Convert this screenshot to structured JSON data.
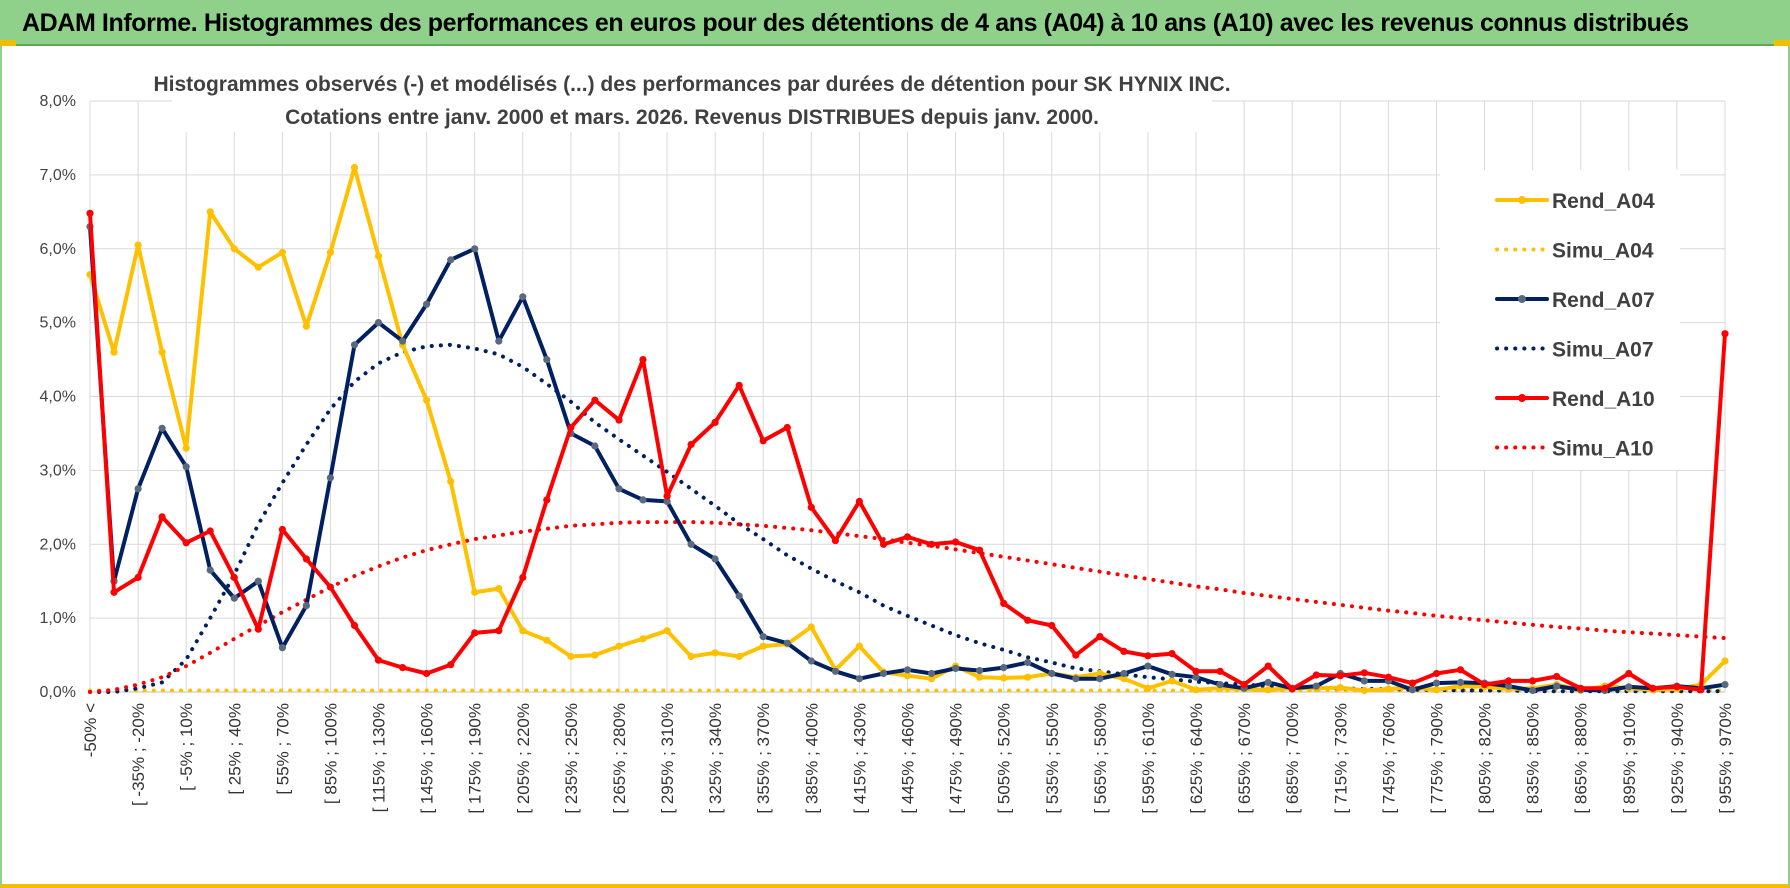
{
  "header": {
    "title": "ADAM Informe. Histogrammes des performances en euros pour des détentions de 4 ans (A04) à 10 ans (A10) avec les revenus connus distribués"
  },
  "chart_data": {
    "type": "line",
    "title": "Histogrammes observés (-) et modélisés (...) des performances par durées de détention pour SK HYNIX INC.",
    "subtitle": "Cotations entre janv. 2000 et mars. 2026.  Revenus DISTRIBUES depuis janv. 2000.",
    "ylim": [
      0,
      8
    ],
    "yticks": [
      "0,0%",
      "1,0%",
      "2,0%",
      "3,0%",
      "4,0%",
      "5,0%",
      "6,0%",
      "7,0%",
      "8,0%"
    ],
    "x_tick_labels": [
      "-50% <",
      "[ -35% ; -20%",
      "[ -5% ; 10%",
      "[ 25% ; 40%",
      "[ 55% ; 70%",
      "[ 85% ; 100%",
      "[ 115% ; 130%",
      "[ 145% ; 160%",
      "[ 175% ; 190%",
      "[ 205% ; 220%",
      "[ 235% ; 250%",
      "[ 265% ; 280%",
      "[ 295% ; 310%",
      "[ 325% ; 340%",
      "[ 355% ; 370%",
      "[ 385% ; 400%",
      "[ 415% ; 430%",
      "[ 445% ; 460%",
      "[ 475% ; 490%",
      "[ 505% ; 520%",
      "[ 535% ; 550%",
      "[ 565% ; 580%",
      "[ 595% ; 610%",
      "[ 625% ; 640%",
      "[ 655% ; 670%",
      "[ 685% ; 700%",
      "[ 715% ; 730%",
      "[ 745% ; 760%",
      "[ 775% ; 790%",
      "[ 805% ; 820%",
      "[ 835% ; 850%",
      "[ 865% ; 880%",
      "[ 895% ; 910%",
      "[ 925% ; 940%",
      "[ 955% ; 970%"
    ],
    "n_categories": 69,
    "series": [
      {
        "name": "Rend_A04",
        "style": "solid",
        "color": "#ffc000",
        "values": [
          5.65,
          4.6,
          6.05,
          4.6,
          3.3,
          6.5,
          6.0,
          5.75,
          5.95,
          4.95,
          5.95,
          7.1,
          5.9,
          4.7,
          3.95,
          2.85,
          1.35,
          1.4,
          0.83,
          0.7,
          0.48,
          0.5,
          0.62,
          0.72,
          0.83,
          0.48,
          0.53,
          0.48,
          0.62,
          0.65,
          0.88,
          0.3,
          0.62,
          0.27,
          0.22,
          0.18,
          0.35,
          0.2,
          0.19,
          0.2,
          0.25,
          0.2,
          0.25,
          0.18,
          0.05,
          0.15,
          0.03,
          0.05,
          0.04,
          0.03,
          0.05,
          0.05,
          0.06,
          0.02,
          0.04,
          0.06,
          0.03,
          0.08,
          0.07,
          0.04,
          0.05,
          0.1,
          0.02,
          0.08,
          0.05,
          0.03,
          0.04,
          0.1,
          0.42
        ]
      },
      {
        "name": "Simu_A04",
        "style": "dotted",
        "color": "#ffc000",
        "values": [
          0.02,
          0.02,
          0.02,
          0.02,
          0.02,
          0.02,
          0.02,
          0.02,
          0.02,
          0.02,
          0.02,
          0.02,
          0.02,
          0.02,
          0.02,
          0.02,
          0.02,
          0.02,
          0.02,
          0.02,
          0.02,
          0.02,
          0.02,
          0.02,
          0.02,
          0.02,
          0.02,
          0.02,
          0.02,
          0.02,
          0.02,
          0.02,
          0.02,
          0.02,
          0.02,
          0.02,
          0.02,
          0.02,
          0.02,
          0.02,
          0.02,
          0.02,
          0.02,
          0.02,
          0.02,
          0.02,
          0.02,
          0.02,
          0.02,
          0.02,
          0.02,
          0.02,
          0.02,
          0.02,
          0.02,
          0.02,
          0.02,
          0.02,
          0.02,
          0.02,
          0.02,
          0.02,
          0.02,
          0.02,
          0.02,
          0.02,
          0.02,
          0.02,
          0.02
        ]
      },
      {
        "name": "Rend_A07",
        "style": "solid",
        "color": "#002060",
        "values": [
          6.3,
          1.5,
          2.75,
          3.57,
          3.05,
          1.65,
          1.27,
          1.5,
          0.6,
          1.17,
          2.9,
          4.7,
          5.0,
          4.75,
          5.25,
          5.85,
          6.0,
          4.75,
          5.35,
          4.5,
          3.5,
          3.33,
          2.75,
          2.6,
          2.58,
          2.0,
          1.8,
          1.3,
          0.75,
          0.66,
          0.42,
          0.28,
          0.18,
          0.25,
          0.3,
          0.25,
          0.32,
          0.29,
          0.33,
          0.4,
          0.25,
          0.18,
          0.18,
          0.25,
          0.35,
          0.24,
          0.2,
          0.1,
          0.05,
          0.13,
          0.05,
          0.08,
          0.25,
          0.15,
          0.15,
          0.03,
          0.12,
          0.13,
          0.12,
          0.08,
          0.02,
          0.08,
          0.03,
          0.02,
          0.07,
          0.05,
          0.08,
          0.05,
          0.1
        ]
      },
      {
        "name": "Simu_A07",
        "style": "dotted",
        "color": "#002060",
        "values": [
          0.0,
          0.0,
          0.05,
          0.13,
          0.44,
          1.0,
          1.59,
          2.27,
          2.83,
          3.35,
          3.83,
          4.2,
          4.45,
          4.6,
          4.68,
          4.7,
          4.65,
          4.57,
          4.4,
          4.17,
          3.93,
          3.65,
          3.42,
          3.2,
          2.98,
          2.75,
          2.52,
          2.28,
          2.07,
          1.85,
          1.67,
          1.5,
          1.35,
          1.17,
          1.03,
          0.9,
          0.77,
          0.66,
          0.57,
          0.47,
          0.4,
          0.32,
          0.28,
          0.24,
          0.2,
          0.17,
          0.14,
          0.12,
          0.1,
          0.08,
          0.07,
          0.06,
          0.05,
          0.04,
          0.04,
          0.03,
          0.03,
          0.02,
          0.02,
          0.02,
          0.01,
          0.01,
          0.01,
          0.01,
          0.01,
          0.01,
          0.01,
          0.01,
          0.01
        ]
      },
      {
        "name": "Rend_A10",
        "style": "solid",
        "color": "#ff0000",
        "values": [
          6.48,
          1.35,
          1.55,
          2.37,
          2.02,
          2.18,
          1.55,
          0.85,
          2.2,
          1.8,
          1.42,
          0.9,
          0.43,
          0.33,
          0.25,
          0.37,
          0.8,
          0.83,
          1.55,
          2.6,
          3.58,
          3.95,
          3.68,
          4.5,
          2.65,
          3.35,
          3.65,
          4.15,
          3.4,
          3.58,
          2.5,
          2.05,
          2.58,
          2.0,
          2.1,
          2.0,
          2.03,
          1.92,
          1.2,
          0.97,
          0.9,
          0.5,
          0.75,
          0.55,
          0.49,
          0.52,
          0.28,
          0.28,
          0.1,
          0.35,
          0.04,
          0.23,
          0.22,
          0.26,
          0.2,
          0.12,
          0.25,
          0.3,
          0.1,
          0.15,
          0.15,
          0.21,
          0.05,
          0.05,
          0.25,
          0.05,
          0.07,
          0.03,
          4.85
        ]
      },
      {
        "name": "Simu_A10",
        "style": "dotted",
        "color": "#ff0000",
        "values": [
          0.0,
          0.03,
          0.1,
          0.2,
          0.35,
          0.53,
          0.72,
          0.9,
          1.08,
          1.25,
          1.42,
          1.57,
          1.7,
          1.82,
          1.92,
          2.0,
          2.07,
          2.12,
          2.17,
          2.21,
          2.25,
          2.27,
          2.29,
          2.3,
          2.3,
          2.3,
          2.29,
          2.27,
          2.25,
          2.22,
          2.19,
          2.15,
          2.11,
          2.07,
          2.02,
          1.98,
          1.93,
          1.88,
          1.83,
          1.78,
          1.73,
          1.68,
          1.63,
          1.58,
          1.53,
          1.48,
          1.43,
          1.39,
          1.34,
          1.3,
          1.26,
          1.22,
          1.18,
          1.14,
          1.1,
          1.07,
          1.03,
          1.0,
          0.97,
          0.94,
          0.91,
          0.88,
          0.86,
          0.83,
          0.81,
          0.79,
          0.77,
          0.75,
          0.73
        ]
      }
    ],
    "legend": [
      "Rend_A04",
      "Simu_A04",
      "Rend_A07",
      "Simu_A07",
      "Rend_A10",
      "Simu_A10"
    ],
    "legend_position": "right",
    "grid": true
  }
}
